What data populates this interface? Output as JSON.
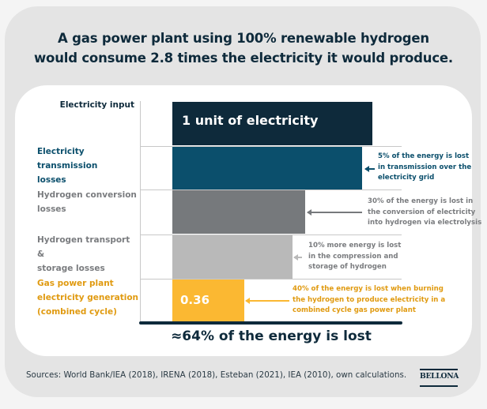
{
  "title": {
    "line1": "A gas power plant using 100% renewable hydrogen",
    "line2": "would consume 2.8 times the electricity it would produce."
  },
  "colors": {
    "navy": "#0e2a3b",
    "transmission": "#0b4f6c",
    "conversion": "#76797c",
    "storage": "#b9b9b9",
    "generation": "#fbb832",
    "generation_text": "#e09a10",
    "gray_text": "#7a7c7f"
  },
  "chart_data": {
    "type": "bar",
    "orientation": "horizontal",
    "title": "A gas power plant using 100% renewable hydrogen would consume 2.8 times the electricity it would produce.",
    "xlabel": "",
    "ylabel": "",
    "xlim": [
      0,
      1
    ],
    "categories": [
      "Electricity input",
      "Electricity transmission losses",
      "Hydrogen conversion losses",
      "Hydrogen transport & storage losses",
      "Gas power plant electricity generation (combined cycle)"
    ],
    "values": [
      1.0,
      0.95,
      0.665,
      0.6,
      0.36
    ],
    "bar_labels": [
      "1 unit of electricity",
      "",
      "",
      "",
      "0.36"
    ],
    "annotations": [
      "",
      "5% of the energy is lost in transmission over the electricity grid",
      "30% of the energy is lost in the conversion of electricity into hydrogen via electrolysis",
      "10%  more energy is lost in the compression and storage of hydrogen",
      "40% of the energy is lost when burning the hydrogen to produce electricity in a combined cycle gas power plant"
    ],
    "summary": "≈64% of the energy is lost",
    "grid": false
  },
  "rows": [
    {
      "label_lines": [
        "Electricity input"
      ],
      "bar_label": "1 unit of electricity",
      "note_lines": []
    },
    {
      "label_lines": [
        "Electricity transmission",
        "losses"
      ],
      "bar_label": "",
      "note_lines": [
        "5% of the energy is lost",
        "in transmission over the",
        "electricity grid"
      ]
    },
    {
      "label_lines": [
        "Hydrogen conversion",
        "losses"
      ],
      "bar_label": "",
      "note_lines": [
        "30% of the energy is lost in",
        "the conversion of electricity",
        "into hydrogen via electrolysis"
      ]
    },
    {
      "label_lines": [
        "Hydrogen transport &",
        "storage losses"
      ],
      "bar_label": "",
      "note_lines": [
        "10%  more energy is lost",
        "in the compression and",
        "storage of hydrogen"
      ]
    },
    {
      "label_lines": [
        "Gas power plant",
        "electricity generation",
        "(combined cycle)"
      ],
      "bar_label": "0.36",
      "note_lines": [
        "40% of the energy is lost when burning",
        "the hydrogen to produce electricity in a",
        "combined cycle gas power plant"
      ]
    }
  ],
  "total": "≈64% of the energy is lost",
  "footer": {
    "sources": "Sources: World Bank/IEA (2018), IRENA (2018), Esteban (2021), IEA (2010), own calculations.",
    "logo": "BELLONA"
  }
}
